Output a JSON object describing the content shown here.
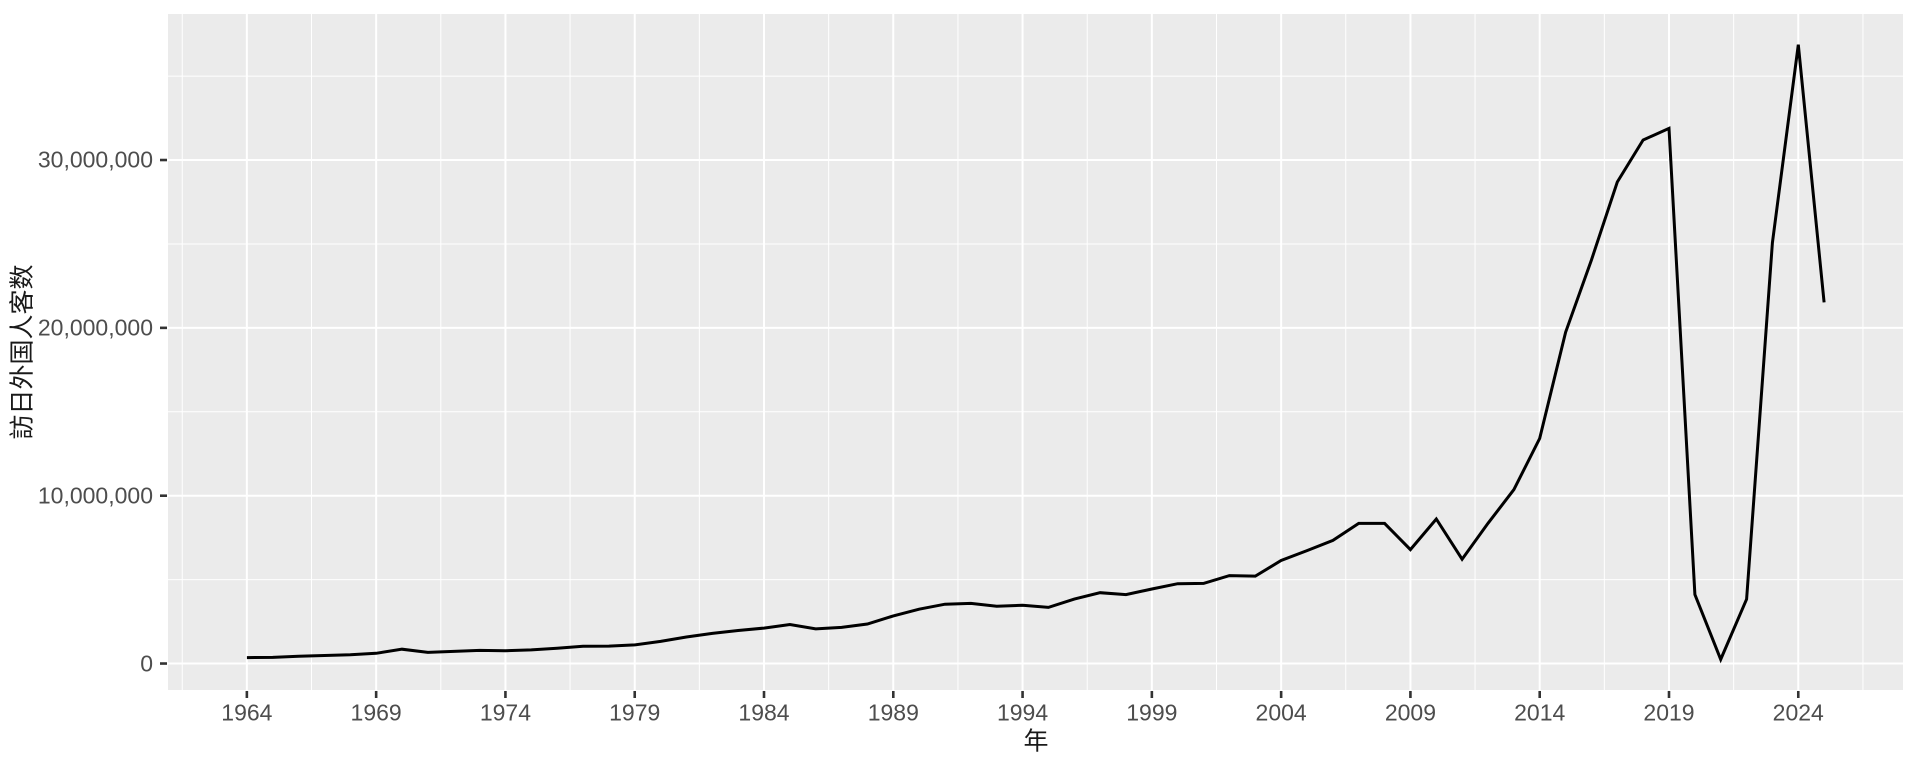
{
  "colors": {
    "figure_background": "#ffffff",
    "panel_background": "#ebebeb",
    "grid": "#ffffff",
    "series_line": "#000000",
    "tick_mark": "#333333",
    "tick_label": "#4d4d4d",
    "axis_title": "#1a1a1a"
  },
  "chart_data": {
    "type": "line",
    "title": "",
    "xlabel": "年",
    "ylabel": "訪日外国人客数",
    "series_name": "訪日外国人客数",
    "x": [
      1964,
      1965,
      1966,
      1967,
      1968,
      1969,
      1970,
      1971,
      1972,
      1973,
      1974,
      1975,
      1976,
      1977,
      1978,
      1979,
      1980,
      1981,
      1982,
      1983,
      1984,
      1985,
      1986,
      1987,
      1988,
      1989,
      1990,
      1991,
      1992,
      1993,
      1994,
      1995,
      1996,
      1997,
      1998,
      1999,
      2000,
      2001,
      2002,
      2003,
      2004,
      2005,
      2006,
      2007,
      2008,
      2009,
      2010,
      2011,
      2012,
      2013,
      2014,
      2015,
      2016,
      2017,
      2018,
      2019,
      2020,
      2021,
      2022,
      2023,
      2024,
      2025
    ],
    "values": [
      352832,
      366649,
      433191,
      476771,
      519004,
      608528,
      854419,
      660715,
      723744,
      784691,
      764246,
      811672,
      914772,
      1028471,
      1038875,
      1112606,
      1316632,
      1583043,
      1793072,
      1968038,
      2110351,
      2327143,
      2061526,
      2154904,
      2355412,
      2835864,
      3235860,
      3532651,
      3581540,
      3410447,
      3468055,
      3345274,
      3837113,
      4218208,
      4106057,
      4437863,
      4757146,
      4771555,
      5238963,
      5211725,
      6137905,
      6727926,
      7334077,
      8346969,
      8350835,
      6789658,
      8611175,
      6218752,
      8358105,
      10363904,
      13413467,
      19737409,
      24039700,
      28691073,
      31191856,
      31882049,
      4115828,
      245862,
      3832110,
      25066350,
      36869900,
      21518100
    ],
    "x_ticks": [
      1964,
      1969,
      1974,
      1979,
      1984,
      1989,
      1994,
      1999,
      2004,
      2009,
      2014,
      2019,
      2024
    ],
    "y_ticks": [
      0,
      10000000,
      20000000,
      30000000
    ],
    "y_tick_labels": [
      "0",
      "10,000,000",
      "20,000,000",
      "30,000,000"
    ],
    "xlim": [
      1960.95,
      2028.05
    ],
    "ylim": [
      -1577000,
      38700000
    ],
    "grid": true,
    "minor_grid": true,
    "legend": false
  }
}
